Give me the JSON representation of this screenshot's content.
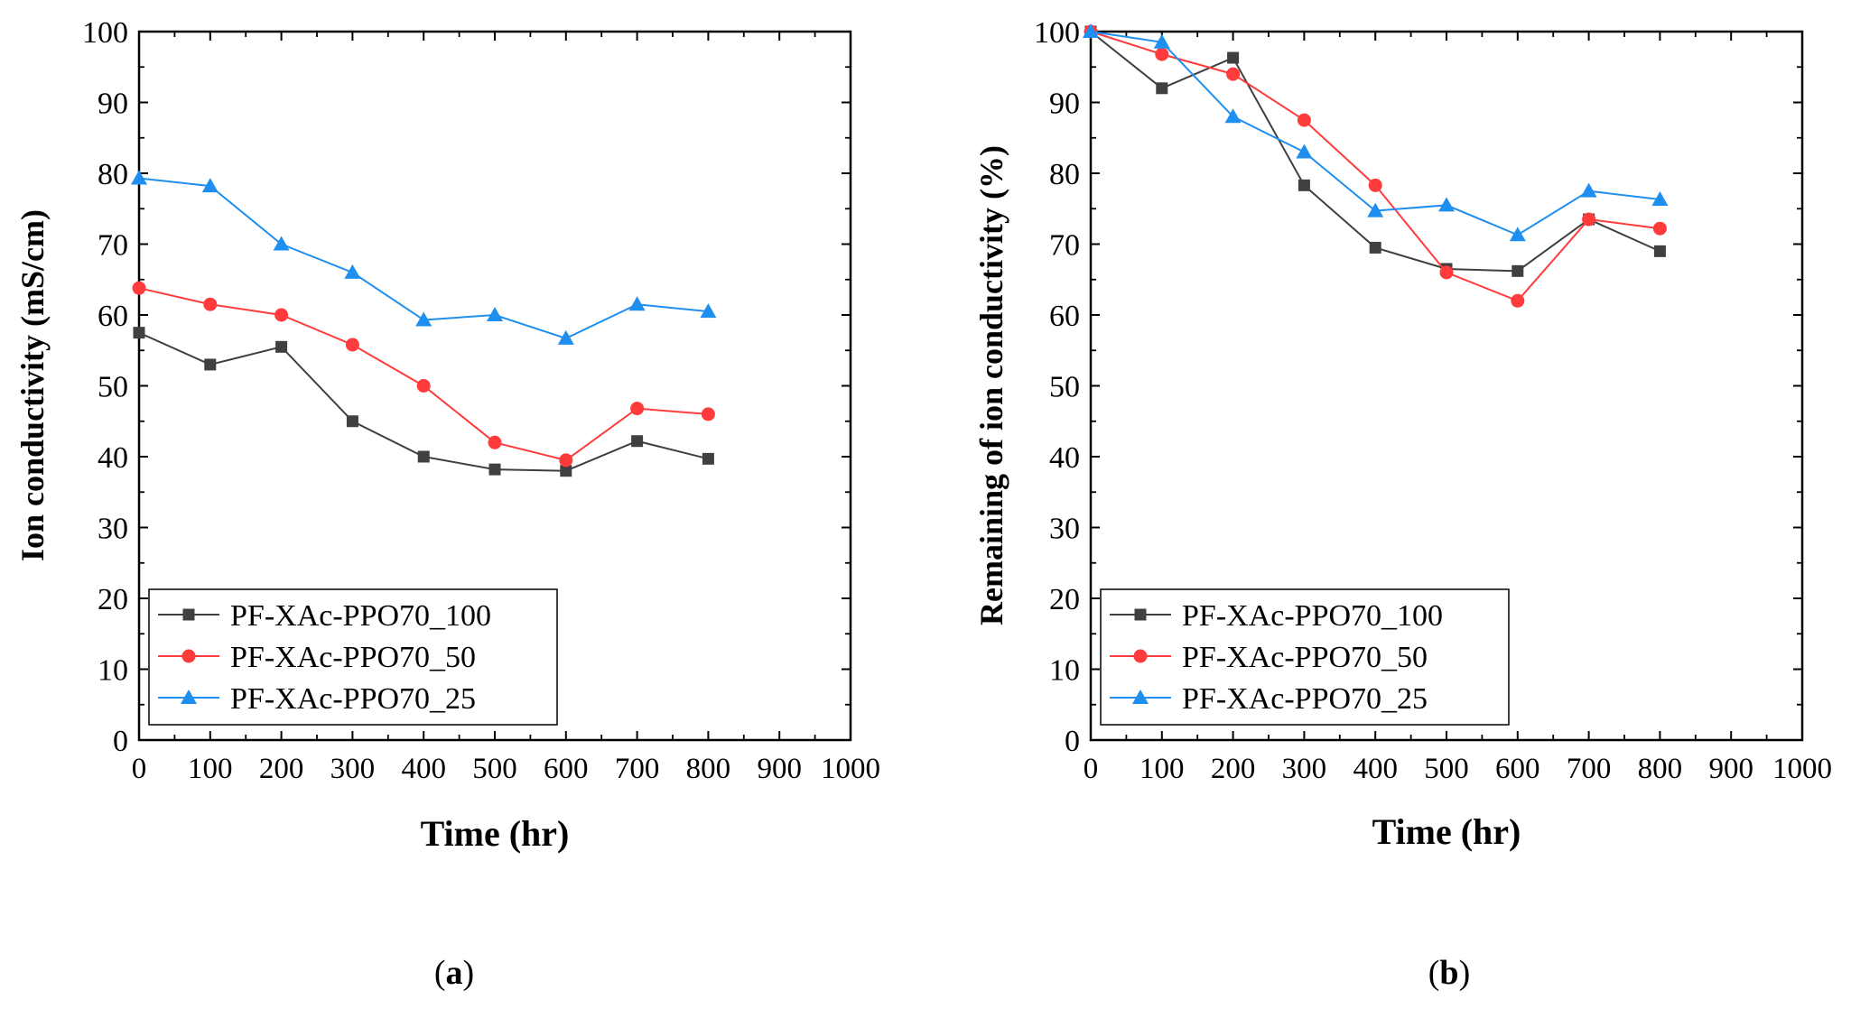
{
  "chart_data": [
    {
      "type": "line",
      "panel_label": "a",
      "title": "",
      "xlabel": "Time (hr)",
      "ylabel": "Ion conductivity (mS/cm)",
      "xlim": [
        0,
        1000
      ],
      "ylim": [
        0,
        100
      ],
      "xticks": [
        0,
        100,
        200,
        300,
        400,
        500,
        600,
        700,
        800,
        900,
        1000
      ],
      "yticks": [
        0,
        10,
        20,
        30,
        40,
        50,
        60,
        70,
        80,
        90,
        100
      ],
      "grid": false,
      "legend_position": "bottom-left",
      "x": [
        0,
        100,
        200,
        300,
        400,
        500,
        600,
        700,
        800
      ],
      "series": [
        {
          "name": "PF-XAc-PPO70_100",
          "color": "#404040",
          "marker": "square",
          "values": [
            57.5,
            53,
            55.5,
            45,
            40,
            38.2,
            38,
            42.2,
            39.7
          ]
        },
        {
          "name": "PF-XAc-PPO70_50",
          "color": "#ff3b3b",
          "marker": "circle",
          "values": [
            63.8,
            61.5,
            60,
            55.8,
            50,
            42,
            39.5,
            46.8,
            46
          ]
        },
        {
          "name": "PF-XAc-PPO70_25",
          "color": "#1e8ff0",
          "marker": "triangle",
          "values": [
            79.3,
            78.2,
            70,
            66,
            59.3,
            60,
            56.7,
            61.5,
            60.5
          ]
        }
      ]
    },
    {
      "type": "line",
      "panel_label": "b",
      "title": "",
      "xlabel": "Time (hr)",
      "ylabel": "Remaining of ion conductivity (%)",
      "xlim": [
        0,
        1000
      ],
      "ylim": [
        0,
        100
      ],
      "xticks": [
        0,
        100,
        200,
        300,
        400,
        500,
        600,
        700,
        800,
        900,
        1000
      ],
      "yticks": [
        0,
        10,
        20,
        30,
        40,
        50,
        60,
        70,
        80,
        90,
        100
      ],
      "grid": false,
      "legend_position": "bottom-left",
      "x": [
        0,
        100,
        200,
        300,
        400,
        500,
        600,
        700,
        800
      ],
      "series": [
        {
          "name": "PF-XAc-PPO70_100",
          "color": "#404040",
          "marker": "square",
          "values": [
            100,
            92,
            96.3,
            78.3,
            69.5,
            66.5,
            66.2,
            73.5,
            69
          ]
        },
        {
          "name": "PF-XAc-PPO70_50",
          "color": "#ff3b3b",
          "marker": "circle",
          "values": [
            100,
            96.8,
            94,
            87.5,
            78.3,
            66,
            62,
            73.5,
            72.2
          ]
        },
        {
          "name": "PF-XAc-PPO70_25",
          "color": "#1e8ff0",
          "marker": "triangle",
          "values": [
            100,
            98.5,
            88,
            83,
            74.7,
            75.5,
            71.3,
            77.5,
            76.3
          ]
        }
      ]
    }
  ]
}
